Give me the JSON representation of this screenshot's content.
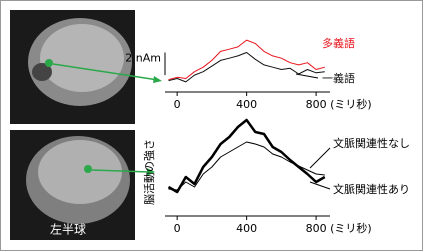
{
  "image_label": "左半球",
  "chart_data": [
    {
      "type": "line",
      "scale_bar": {
        "value": 2,
        "label": "2 nAm"
      },
      "x_label": "(ミリ秒)",
      "x": [
        -50,
        0,
        50,
        100,
        150,
        200,
        250,
        300,
        350,
        400,
        450,
        500,
        550,
        600,
        650,
        700,
        750,
        800,
        850
      ],
      "xlim": [
        -70,
        880
      ],
      "xticks": [
        0,
        400,
        800
      ],
      "ylim": [
        -1,
        4.5
      ],
      "series": [
        {
          "name": "多義語",
          "color": "#e8141c",
          "width": 1,
          "values": [
            0.1,
            0.3,
            0.2,
            0.8,
            1.2,
            1.8,
            2.6,
            2.8,
            3.0,
            3.6,
            3.3,
            2.6,
            2.2,
            2.0,
            1.6,
            1.4,
            1.6,
            1.0,
            1.2
          ]
        },
        {
          "name": "一義語",
          "color": "#111111",
          "width": 1,
          "values": [
            0.0,
            0.2,
            -0.1,
            0.5,
            0.8,
            1.3,
            1.8,
            2.0,
            2.2,
            2.5,
            1.9,
            1.4,
            1.2,
            1.0,
            1.1,
            0.6,
            1.0,
            0.7,
            0.8
          ]
        }
      ]
    },
    {
      "type": "line",
      "y_label": "脳活動の強さ",
      "x_label": "(ミリ秒)",
      "x": [
        -50,
        0,
        50,
        100,
        150,
        200,
        250,
        300,
        350,
        400,
        450,
        500,
        550,
        600,
        650,
        700,
        750,
        800,
        850
      ],
      "xlim": [
        -70,
        880
      ],
      "xticks": [
        0,
        400,
        800
      ],
      "ylim": [
        0,
        10
      ],
      "series": [
        {
          "name": "文脈関連性なし",
          "color": "#000000",
          "width": 2.5,
          "values": [
            2.5,
            2.0,
            3.5,
            2.8,
            4.5,
            5.5,
            6.8,
            7.5,
            8.5,
            9.2,
            8.0,
            7.8,
            6.5,
            6.0,
            5.2,
            4.5,
            3.8,
            3.0,
            3.5
          ]
        },
        {
          "name": "文脈関連性あり",
          "color": "#000000",
          "width": 1,
          "values": [
            2.3,
            2.2,
            3.0,
            2.5,
            3.8,
            4.5,
            5.5,
            6.0,
            6.5,
            7.0,
            6.8,
            6.5,
            5.8,
            5.5,
            5.0,
            4.6,
            4.2,
            3.8,
            3.7
          ]
        }
      ]
    }
  ]
}
